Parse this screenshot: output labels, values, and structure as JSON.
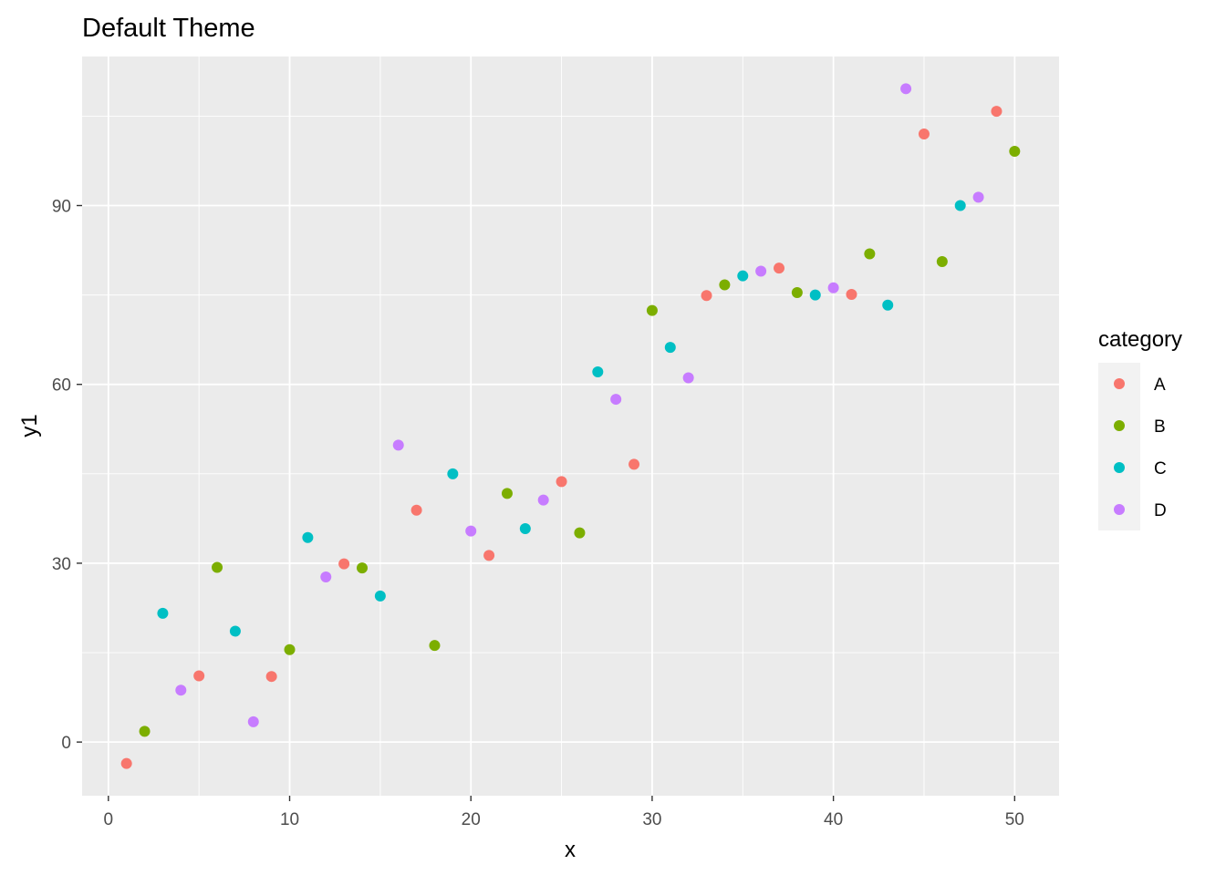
{
  "chart_data": {
    "type": "scatter",
    "title": "Default Theme",
    "xlabel": "x",
    "ylabel": "y1",
    "xlim": [
      -1.45,
      52.45
    ],
    "ylim": [
      -9,
      115
    ],
    "xticks": [
      0,
      10,
      20,
      30,
      40,
      50
    ],
    "yticks": [
      0,
      30,
      60,
      90
    ],
    "grid": true,
    "background": "#EBEBEB",
    "legend": {
      "title": "category",
      "position": "right",
      "entries": [
        {
          "label": "A",
          "color": "#F8766D"
        },
        {
          "label": "B",
          "color": "#7CAE00"
        },
        {
          "label": "C",
          "color": "#00BFC4"
        },
        {
          "label": "D",
          "color": "#C77CFF"
        }
      ]
    },
    "series": [
      {
        "name": "A",
        "color": "#F8766D",
        "points": [
          [
            1,
            -3.6
          ],
          [
            5,
            11.1
          ],
          [
            9,
            11.0
          ],
          [
            13,
            29.9
          ],
          [
            17,
            38.9
          ],
          [
            21,
            31.3
          ],
          [
            25,
            43.7
          ],
          [
            29,
            46.6
          ],
          [
            33,
            74.9
          ],
          [
            37,
            79.5
          ],
          [
            41,
            75.1
          ],
          [
            45,
            102.0
          ],
          [
            49,
            105.8
          ]
        ]
      },
      {
        "name": "B",
        "color": "#7CAE00",
        "points": [
          [
            2,
            1.8
          ],
          [
            6,
            29.3
          ],
          [
            10,
            15.5
          ],
          [
            14,
            29.2
          ],
          [
            18,
            16.2
          ],
          [
            22,
            41.7
          ],
          [
            26,
            35.1
          ],
          [
            30,
            72.4
          ],
          [
            34,
            76.7
          ],
          [
            38,
            75.4
          ],
          [
            42,
            81.9
          ],
          [
            46,
            80.6
          ],
          [
            50,
            99.1
          ]
        ]
      },
      {
        "name": "C",
        "color": "#00BFC4",
        "points": [
          [
            3,
            21.6
          ],
          [
            7,
            18.6
          ],
          [
            11,
            34.3
          ],
          [
            15,
            24.5
          ],
          [
            19,
            45.0
          ],
          [
            23,
            35.8
          ],
          [
            27,
            62.1
          ],
          [
            31,
            66.2
          ],
          [
            35,
            78.2
          ],
          [
            39,
            75.0
          ],
          [
            43,
            73.3
          ],
          [
            47,
            90.0
          ]
        ]
      },
      {
        "name": "D",
        "color": "#C77CFF",
        "points": [
          [
            4,
            8.7
          ],
          [
            8,
            3.4
          ],
          [
            12,
            27.7
          ],
          [
            16,
            49.8
          ],
          [
            20,
            35.4
          ],
          [
            24,
            40.6
          ],
          [
            28,
            57.5
          ],
          [
            32,
            61.1
          ],
          [
            36,
            79.0
          ],
          [
            40,
            76.2
          ],
          [
            44,
            109.6
          ],
          [
            48,
            91.4
          ]
        ]
      }
    ]
  }
}
